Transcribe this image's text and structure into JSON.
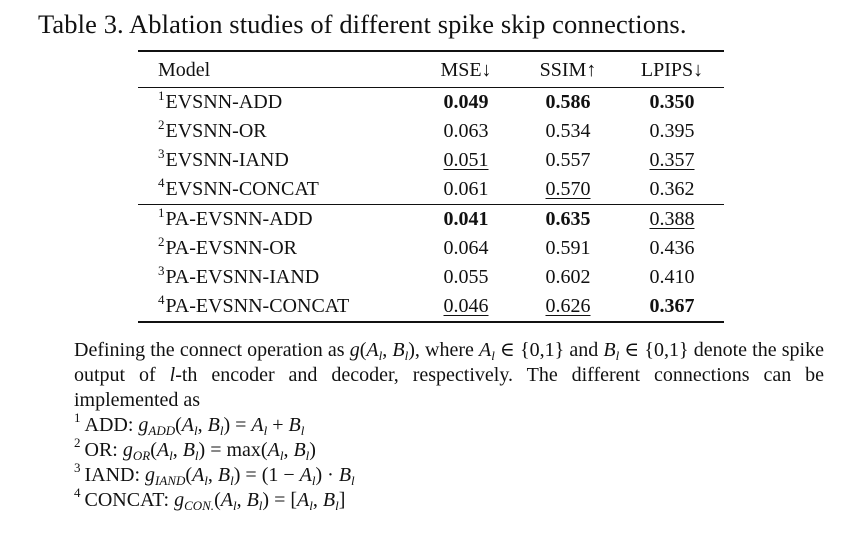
{
  "caption": "Table 3. Ablation studies of different spike skip connections.",
  "table": {
    "headers": {
      "model": "Model",
      "mse": "MSE↓",
      "ssim": "SSIM↑",
      "lpips": "LPIPS↓"
    },
    "group1": [
      {
        "sup": "1",
        "model": "EVSNN-ADD",
        "mse": "0.049",
        "ssim": "0.586",
        "lpips": "0.350"
      },
      {
        "sup": "2",
        "model": "EVSNN-OR",
        "mse": "0.063",
        "ssim": "0.534",
        "lpips": "0.395"
      },
      {
        "sup": "3",
        "model": "EVSNN-IAND",
        "mse": "0.051",
        "ssim": "0.557",
        "lpips": "0.357"
      },
      {
        "sup": "4",
        "model": "EVSNN-CONCAT",
        "mse": "0.061",
        "ssim": "0.570",
        "lpips": "0.362"
      }
    ],
    "group2": [
      {
        "sup": "1",
        "model": "PA-EVSNN-ADD",
        "mse": "0.041",
        "ssim": "0.635",
        "lpips": "0.388"
      },
      {
        "sup": "2",
        "model": "PA-EVSNN-OR",
        "mse": "0.064",
        "ssim": "0.591",
        "lpips": "0.436"
      },
      {
        "sup": "3",
        "model": "PA-EVSNN-IAND",
        "mse": "0.055",
        "ssim": "0.602",
        "lpips": "0.410"
      },
      {
        "sup": "4",
        "model": "PA-EVSNN-CONCAT",
        "mse": "0.046",
        "ssim": "0.626",
        "lpips": "0.367"
      }
    ]
  },
  "footnote": {
    "para1": "Defining the connect operation as",
    "para2": ", where",
    "para3": "and",
    "para4": "denote the spike output of",
    "para5": "-th encoder and decoder, respectively.  The different connections can be implemented as",
    "items": [
      {
        "sup": "1",
        "label": "ADD:"
      },
      {
        "sup": "2",
        "label": "OR:"
      },
      {
        "sup": "3",
        "label": "IAND:"
      },
      {
        "sup": "4",
        "label": "CONCAT:"
      }
    ]
  }
}
